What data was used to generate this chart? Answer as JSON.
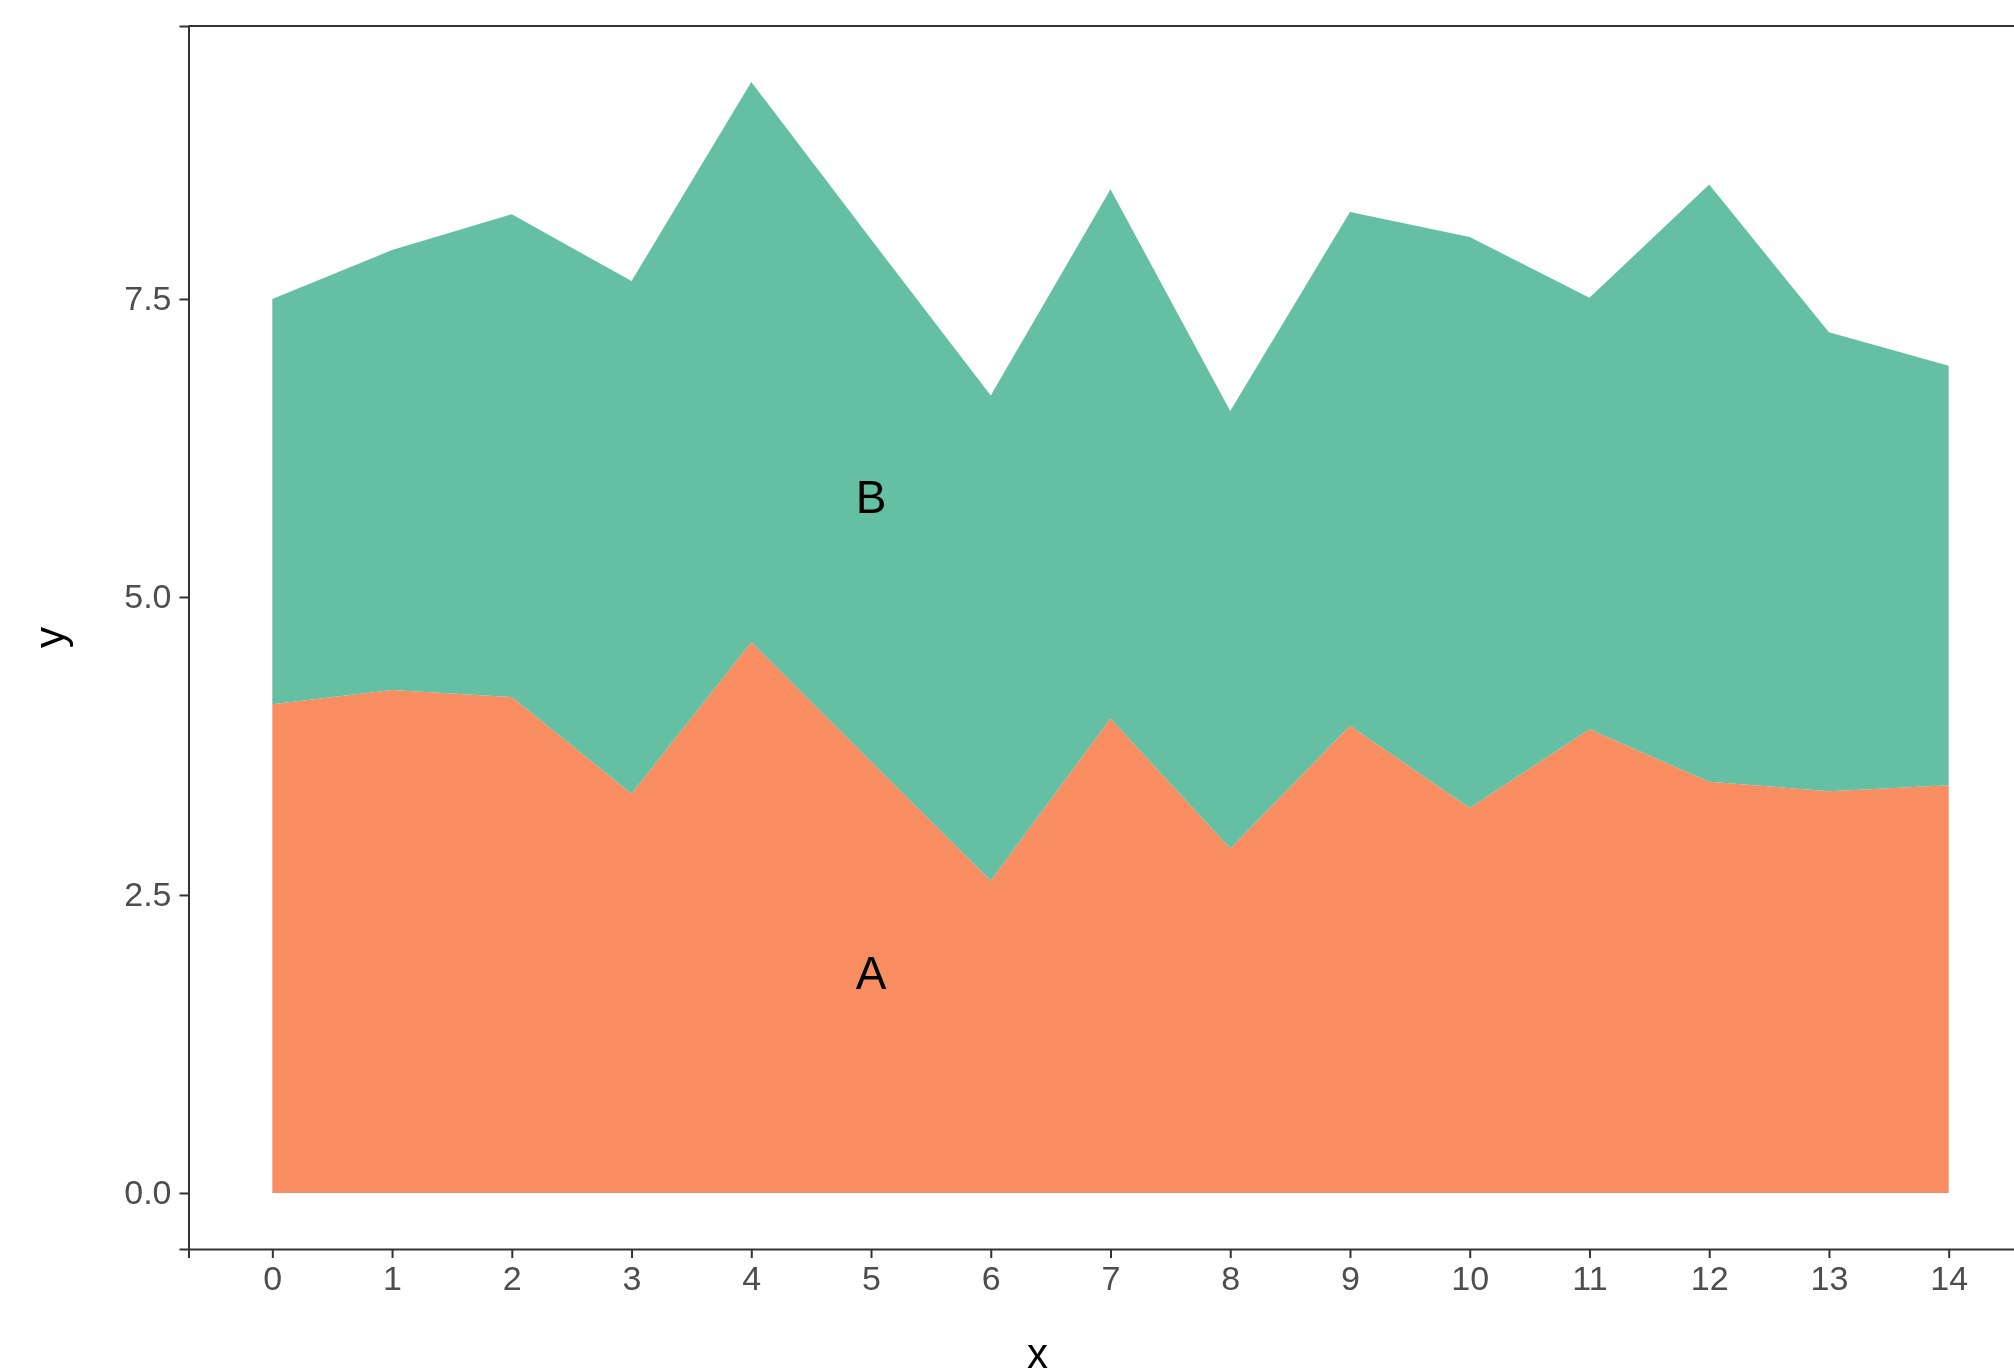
{
  "chart_data": {
    "type": "area",
    "stacked": true,
    "xlabel": "x",
    "ylabel": "y",
    "x": [
      0,
      1,
      2,
      3,
      4,
      5,
      6,
      7,
      8,
      9,
      10,
      11,
      12,
      13,
      14
    ],
    "series": [
      {
        "name": "A",
        "color": "#f88d62",
        "values": [
          4.1,
          4.22,
          4.16,
          3.35,
          4.62,
          3.62,
          2.62,
          3.98,
          2.89,
          3.92,
          3.23,
          3.89,
          3.45,
          3.37,
          3.42
        ]
      },
      {
        "name": "B",
        "color": "#65bfa2",
        "values": [
          3.4,
          3.69,
          4.05,
          4.3,
          4.7,
          4.38,
          4.07,
          4.44,
          3.67,
          4.31,
          4.79,
          3.62,
          5.01,
          3.85,
          3.52
        ]
      }
    ],
    "xlim": [
      -0.7,
      14.7
    ],
    "ylim": [
      -0.47,
      9.79
    ],
    "xticks": [
      0,
      1,
      2,
      3,
      4,
      5,
      6,
      7,
      8,
      9,
      10,
      11,
      12,
      13,
      14
    ],
    "yticks": [
      {
        "value": 0,
        "label": "0.0"
      },
      {
        "value": 2.5,
        "label": "2.5"
      },
      {
        "value": 5,
        "label": "5.0"
      },
      {
        "value": 7.5,
        "label": "7.5"
      }
    ],
    "grid": false
  }
}
